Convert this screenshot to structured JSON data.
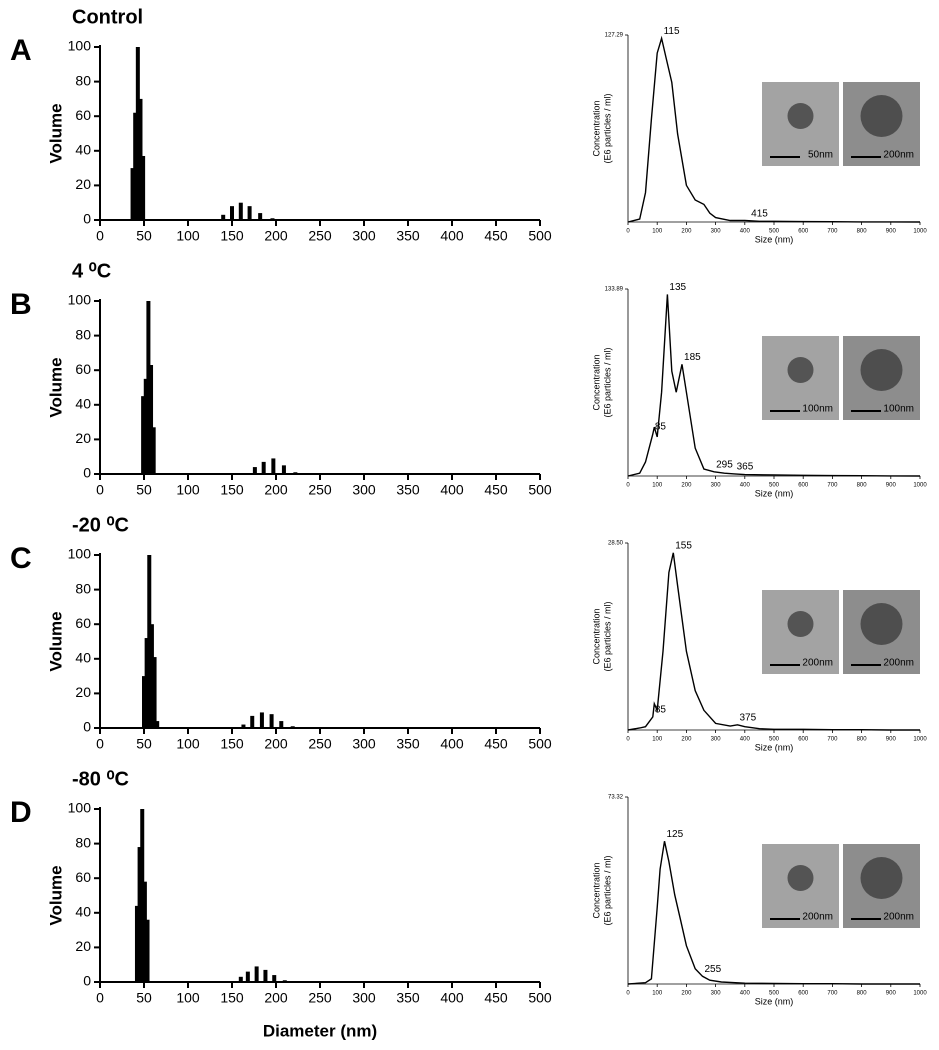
{
  "chart_data": [
    {
      "type": "bar",
      "panel": "A",
      "title": "Control",
      "ylabel": "Volume",
      "color": "#000000",
      "x": [
        37,
        40,
        43,
        46,
        49,
        140,
        150,
        160,
        170,
        182,
        196
      ],
      "values": [
        30,
        62,
        100,
        70,
        37,
        3,
        8,
        10,
        8,
        4,
        1
      ],
      "xlim": [
        0,
        500
      ],
      "ylim": [
        0,
        100
      ],
      "xticks": [
        0,
        50,
        100,
        150,
        200,
        250,
        300,
        350,
        400,
        450,
        500
      ],
      "yticks": [
        0,
        20,
        40,
        60,
        80,
        100
      ]
    },
    {
      "type": "line",
      "ylabel": [
        "Concentration",
        "(E6 particles / ml)"
      ],
      "xlabel": "Size (nm)",
      "color": "#000000",
      "x": [
        0,
        40,
        60,
        80,
        100,
        115,
        130,
        150,
        170,
        200,
        230,
        260,
        280,
        300,
        350,
        400,
        450,
        500,
        600,
        700,
        800,
        900,
        1000
      ],
      "values": [
        0,
        2,
        20,
        70,
        115,
        125,
        112,
        95,
        60,
        25,
        15,
        12,
        6,
        3,
        1,
        1,
        0.5,
        0.5,
        0.3,
        0.2,
        0.1,
        0.1,
        0
      ],
      "peak_labels": [
        115,
        415
      ],
      "xlim": [
        0,
        1000
      ],
      "ylim": [
        0,
        127.29
      ],
      "xticks": [
        0,
        100,
        200,
        300,
        400,
        500,
        600,
        700,
        800,
        900,
        1000
      ],
      "yticks": [
        127.29
      ],
      "images": [
        {
          "scale": "50nm"
        },
        {
          "scale": "200nm"
        }
      ]
    },
    {
      "type": "bar",
      "panel": "B",
      "title": "4 ⁰C",
      "ylabel": "Volume",
      "color": "#000000",
      "x": [
        49,
        52,
        55,
        58,
        61,
        176,
        186,
        197,
        209,
        222
      ],
      "values": [
        45,
        55,
        100,
        63,
        27,
        4,
        7,
        9,
        5,
        1
      ],
      "xlim": [
        0,
        500
      ],
      "ylim": [
        0,
        100
      ],
      "xticks": [
        0,
        50,
        100,
        150,
        200,
        250,
        300,
        350,
        400,
        450,
        500
      ],
      "yticks": [
        0,
        20,
        40,
        60,
        80,
        100
      ]
    },
    {
      "type": "line",
      "ylabel": [
        "Concentration",
        "(E6 particles / ml)"
      ],
      "xlabel": "Size (nm)",
      "color": "#000000",
      "x": [
        0,
        40,
        60,
        85,
        90,
        100,
        115,
        135,
        150,
        165,
        185,
        200,
        230,
        260,
        295,
        330,
        365,
        400,
        500,
        600,
        700,
        800,
        900,
        1000
      ],
      "values": [
        0,
        2,
        10,
        30,
        35,
        28,
        60,
        130,
        75,
        60,
        80,
        60,
        20,
        5,
        3,
        2,
        1.5,
        1,
        0.8,
        0.5,
        0.3,
        0.2,
        0.1,
        0
      ],
      "peak_labels": [
        85,
        135,
        185,
        295,
        365
      ],
      "xlim": [
        0,
        1000
      ],
      "ylim": [
        0,
        133.89
      ],
      "xticks": [
        0,
        100,
        200,
        300,
        400,
        500,
        600,
        700,
        800,
        900,
        1000
      ],
      "yticks": [
        133.89
      ],
      "images": [
        {
          "scale": "100nm"
        },
        {
          "scale": "100nm"
        }
      ]
    },
    {
      "type": "bar",
      "panel": "C",
      "title": "-20 ⁰C",
      "ylabel": "Volume",
      "color": "#000000",
      "x": [
        50,
        53,
        56,
        59,
        62,
        65,
        163,
        173,
        184,
        195,
        206,
        219
      ],
      "values": [
        30,
        52,
        100,
        60,
        41,
        4,
        2,
        7,
        9,
        8,
        4,
        1
      ],
      "xlim": [
        0,
        500
      ],
      "ylim": [
        0,
        100
      ],
      "xticks": [
        0,
        50,
        100,
        150,
        200,
        250,
        300,
        350,
        400,
        450,
        500
      ],
      "yticks": [
        0,
        20,
        40,
        60,
        80,
        100
      ]
    },
    {
      "type": "line",
      "ylabel": [
        "Concentration",
        "(E6 particles / ml)"
      ],
      "xlabel": "Size (nm)",
      "color": "#000000",
      "x": [
        0,
        40,
        60,
        85,
        90,
        100,
        120,
        140,
        155,
        170,
        200,
        230,
        260,
        300,
        350,
        375,
        400,
        450,
        500,
        600,
        700,
        800,
        900,
        1000
      ],
      "values": [
        0,
        0.3,
        0.5,
        2,
        4,
        3,
        12,
        24,
        27,
        22,
        12,
        6,
        3,
        1,
        0.6,
        0.8,
        0.5,
        0.2,
        0.1,
        0.1,
        0.05,
        0.05,
        0,
        0
      ],
      "peak_labels": [
        85,
        155,
        375
      ],
      "xlim": [
        0,
        1000
      ],
      "ylim": [
        0,
        28.5
      ],
      "xticks": [
        0,
        100,
        200,
        300,
        400,
        500,
        600,
        700,
        800,
        900,
        1000
      ],
      "yticks": [
        {
          "value": 28.5,
          "label": "28.50"
        }
      ],
      "images": [
        {
          "scale": "200nm"
        },
        {
          "scale": "200nm"
        }
      ]
    },
    {
      "type": "bar",
      "panel": "D",
      "title": "-80 ⁰C",
      "ylabel": "Volume",
      "xlabel": "Diameter (nm)",
      "color": "#000000",
      "x": [
        42,
        45,
        48,
        51,
        54,
        160,
        168,
        178,
        188,
        198,
        210
      ],
      "values": [
        44,
        78,
        100,
        58,
        36,
        3,
        6,
        9,
        7,
        4,
        1
      ],
      "xlim": [
        0,
        500
      ],
      "ylim": [
        0,
        100
      ],
      "xticks": [
        0,
        50,
        100,
        150,
        200,
        250,
        300,
        350,
        400,
        450,
        500
      ],
      "yticks": [
        0,
        20,
        40,
        60,
        80,
        100
      ]
    },
    {
      "type": "line",
      "ylabel": [
        "Concentration",
        "(E6 particles / ml)"
      ],
      "xlabel": "Size (nm)",
      "color": "#000000",
      "x": [
        0,
        60,
        80,
        100,
        110,
        125,
        140,
        160,
        180,
        200,
        230,
        255,
        280,
        320,
        400,
        500,
        600,
        700,
        800,
        900,
        1000
      ],
      "values": [
        0,
        0.5,
        2,
        30,
        45,
        56,
        48,
        35,
        25,
        15,
        6,
        3,
        1.5,
        0.8,
        0.3,
        0.2,
        0.1,
        0.1,
        0,
        0,
        0
      ],
      "peak_labels": [
        125,
        255
      ],
      "xlim": [
        0,
        1000
      ],
      "ylim": [
        0,
        73.32
      ],
      "xticks": [
        0,
        100,
        200,
        300,
        400,
        500,
        600,
        700,
        800,
        900,
        1000
      ],
      "yticks": [
        73.32
      ],
      "images": [
        {
          "scale": "200nm"
        },
        {
          "scale": "200nm"
        }
      ]
    }
  ]
}
